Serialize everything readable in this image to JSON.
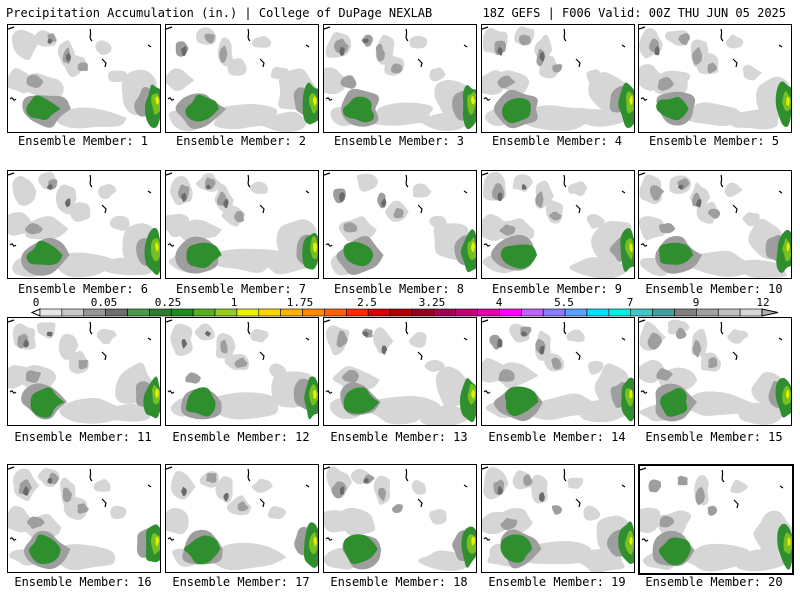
{
  "header": {
    "title": "Precipitation Accumulation (in.) | College of DuPage NEXLAB",
    "run_info": "18Z GEFS | F006 Valid: 00Z THU JUN 05 2025"
  },
  "colorbar": {
    "labels": [
      "0",
      "0.05",
      "0.25",
      "1",
      "1.75",
      "2.5",
      "3.25",
      "4",
      "5.5",
      "7",
      "9",
      "12"
    ],
    "colors": [
      "#e6e6e6",
      "#c8c8c8",
      "#969696",
      "#6e6e6e",
      "#4a9a4a",
      "#2e7d2e",
      "#1e8c1e",
      "#56b022",
      "#98cc1e",
      "#eef000",
      "#ffd500",
      "#ffb000",
      "#ff8a00",
      "#ff6000",
      "#ff2a00",
      "#d80000",
      "#b40000",
      "#960020",
      "#a00050",
      "#c00078",
      "#e000b0",
      "#ff00ff",
      "#c060ff",
      "#8a7cff",
      "#5aa0ff",
      "#00e0ff",
      "#00f0e8",
      "#40c8c8",
      "#40a0a0",
      "#808080",
      "#a0a0a0",
      "#c0c0c0",
      "#d8d8d8"
    ]
  },
  "precip_colors": {
    "light": "#d6d6d6",
    "mid": "#9e9e9e",
    "dark": "#6a6a6a",
    "green": "#2f8f2f",
    "lightgreen": "#78c020",
    "yellow": "#e8f000"
  },
  "members": [
    {
      "label": "Ensemble Member: 1"
    },
    {
      "label": "Ensemble Member: 2"
    },
    {
      "label": "Ensemble Member: 3"
    },
    {
      "label": "Ensemble Member: 4"
    },
    {
      "label": "Ensemble Member: 5"
    },
    {
      "label": "Ensemble Member: 6"
    },
    {
      "label": "Ensemble Member: 7"
    },
    {
      "label": "Ensemble Member: 8"
    },
    {
      "label": "Ensemble Member: 9"
    },
    {
      "label": "Ensemble Member: 10"
    },
    {
      "label": "Ensemble Member: 11"
    },
    {
      "label": "Ensemble Member: 12"
    },
    {
      "label": "Ensemble Member: 13"
    },
    {
      "label": "Ensemble Member: 14"
    },
    {
      "label": "Ensemble Member: 15"
    },
    {
      "label": "Ensemble Member: 16"
    },
    {
      "label": "Ensemble Member: 17"
    },
    {
      "label": "Ensemble Member: 18"
    },
    {
      "label": "Ensemble Member: 19"
    },
    {
      "label": "Ensemble Member: 20"
    }
  ]
}
